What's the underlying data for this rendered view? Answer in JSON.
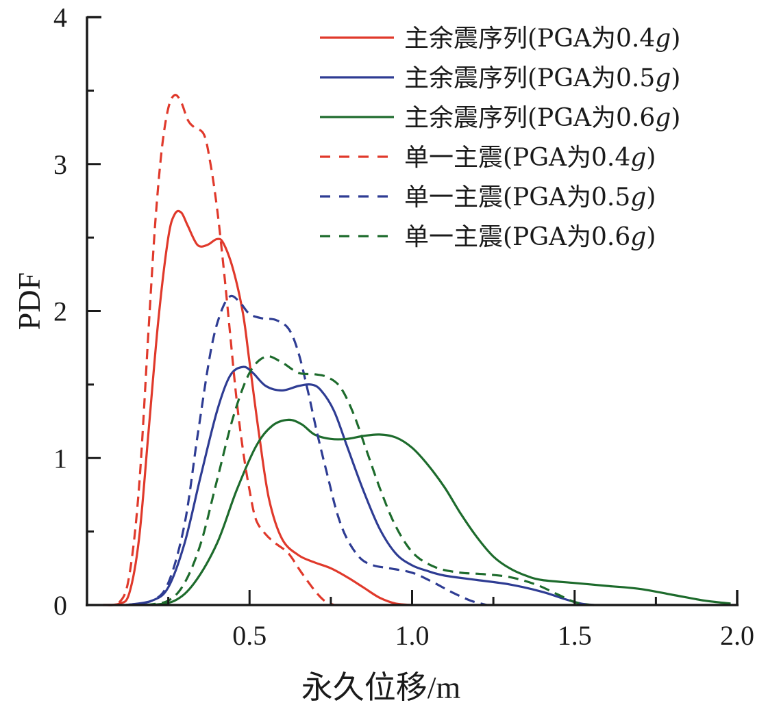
{
  "chart_data": {
    "type": "line",
    "title": "",
    "xlabel": "永久位移/m",
    "ylabel": "PDF",
    "xlim": [
      0,
      2.0
    ],
    "ylim": [
      0,
      4
    ],
    "xticks": [
      "0.5",
      "1.0",
      "1.5",
      "2.0"
    ],
    "xtick_values": [
      0.5,
      1.0,
      1.5,
      2.0
    ],
    "xminor_values": [
      0.25,
      0.75,
      1.25,
      1.75
    ],
    "yticks": [
      "0",
      "1",
      "2",
      "3",
      "4"
    ],
    "ytick_values": [
      0,
      1,
      2,
      3,
      4
    ],
    "yminor_values": [
      0.5,
      1.5,
      2.5,
      3.5
    ],
    "grid": false,
    "legend_position": "top-right",
    "series": [
      {
        "name": "主余震序列(PGA为0.4",
        "suffix": "g",
        "close": ")",
        "color": "#e0392b",
        "dash": "solid",
        "x": [
          0.05,
          0.1,
          0.13,
          0.16,
          0.19,
          0.22,
          0.25,
          0.27,
          0.29,
          0.31,
          0.34,
          0.37,
          0.4,
          0.42,
          0.45,
          0.48,
          0.5,
          0.53,
          0.56,
          0.6,
          0.65,
          0.7,
          0.75,
          0.8,
          0.85,
          0.9,
          0.95,
          1.0
        ],
        "y": [
          0,
          0.01,
          0.08,
          0.45,
          1.2,
          1.95,
          2.5,
          2.66,
          2.67,
          2.58,
          2.45,
          2.45,
          2.49,
          2.46,
          2.28,
          1.98,
          1.65,
          1.15,
          0.72,
          0.45,
          0.34,
          0.29,
          0.25,
          0.19,
          0.12,
          0.05,
          0.01,
          0
        ]
      },
      {
        "name": "主余震序列(PGA为0.5",
        "suffix": "g",
        "close": ")",
        "color": "#2e3c93",
        "dash": "solid",
        "x": [
          0.12,
          0.2,
          0.25,
          0.3,
          0.35,
          0.4,
          0.44,
          0.48,
          0.51,
          0.55,
          0.6,
          0.65,
          0.69,
          0.72,
          0.76,
          0.8,
          0.85,
          0.9,
          0.95,
          1.0,
          1.05,
          1.1,
          1.2,
          1.3,
          1.4,
          1.47,
          1.52,
          1.56
        ],
        "y": [
          0,
          0.03,
          0.12,
          0.42,
          0.88,
          1.32,
          1.56,
          1.62,
          1.58,
          1.49,
          1.46,
          1.49,
          1.5,
          1.46,
          1.32,
          1.08,
          0.78,
          0.52,
          0.35,
          0.27,
          0.23,
          0.2,
          0.17,
          0.14,
          0.09,
          0.04,
          0.01,
          0
        ]
      },
      {
        "name": "主余震序列(PGA为0.6",
        "suffix": "g",
        "close": ")",
        "color": "#1d6b2c",
        "dash": "solid",
        "x": [
          0.2,
          0.27,
          0.33,
          0.4,
          0.46,
          0.52,
          0.57,
          0.62,
          0.66,
          0.7,
          0.75,
          0.8,
          0.85,
          0.9,
          0.95,
          1.0,
          1.05,
          1.1,
          1.15,
          1.2,
          1.25,
          1.3,
          1.35,
          1.4,
          1.5,
          1.6,
          1.7,
          1.8,
          1.9,
          1.98
        ],
        "y": [
          0,
          0.03,
          0.15,
          0.42,
          0.78,
          1.08,
          1.22,
          1.26,
          1.23,
          1.16,
          1.13,
          1.13,
          1.15,
          1.16,
          1.14,
          1.07,
          0.95,
          0.8,
          0.62,
          0.46,
          0.33,
          0.25,
          0.2,
          0.17,
          0.15,
          0.13,
          0.11,
          0.07,
          0.03,
          0.01
        ]
      },
      {
        "name": "单一主震(PGA为0.4",
        "suffix": "g",
        "close": ")",
        "color": "#e0392b",
        "dash": "dashed",
        "x": [
          0.05,
          0.1,
          0.13,
          0.16,
          0.19,
          0.21,
          0.23,
          0.25,
          0.27,
          0.29,
          0.31,
          0.33,
          0.36,
          0.38,
          0.4,
          0.42,
          0.44,
          0.46,
          0.48,
          0.5,
          0.52,
          0.55,
          0.58,
          0.62,
          0.66,
          0.7,
          0.73,
          0.76
        ],
        "y": [
          0,
          0.02,
          0.2,
          0.8,
          1.9,
          2.6,
          3.1,
          3.38,
          3.47,
          3.42,
          3.3,
          3.25,
          3.2,
          3.0,
          2.7,
          2.3,
          1.85,
          1.4,
          1.05,
          0.78,
          0.58,
          0.48,
          0.42,
          0.35,
          0.22,
          0.1,
          0.03,
          0
        ]
      },
      {
        "name": "单一主震(PGA为0.5",
        "suffix": "g",
        "close": ")",
        "color": "#2e3c93",
        "dash": "dashed",
        "x": [
          0.12,
          0.2,
          0.25,
          0.3,
          0.34,
          0.38,
          0.41,
          0.44,
          0.47,
          0.5,
          0.54,
          0.58,
          0.62,
          0.65,
          0.68,
          0.71,
          0.74,
          0.77,
          0.8,
          0.84,
          0.88,
          0.93,
          1.0,
          1.06,
          1.12,
          1.18,
          1.23
        ],
        "y": [
          0,
          0.03,
          0.15,
          0.55,
          1.15,
          1.72,
          1.98,
          2.1,
          2.06,
          1.98,
          1.95,
          1.94,
          1.88,
          1.72,
          1.45,
          1.15,
          0.88,
          0.62,
          0.45,
          0.32,
          0.27,
          0.25,
          0.22,
          0.16,
          0.09,
          0.03,
          0
        ]
      },
      {
        "name": "单一主震(PGA为0.6",
        "suffix": "g",
        "close": ")",
        "color": "#1d6b2c",
        "dash": "dashed",
        "x": [
          0.18,
          0.25,
          0.3,
          0.35,
          0.4,
          0.45,
          0.5,
          0.55,
          0.6,
          0.65,
          0.7,
          0.74,
          0.78,
          0.82,
          0.86,
          0.9,
          0.94,
          0.98,
          1.02,
          1.08,
          1.15,
          1.22,
          1.3,
          1.38,
          1.45,
          1.5,
          1.55
        ],
        "y": [
          0,
          0.03,
          0.15,
          0.42,
          0.85,
          1.28,
          1.58,
          1.69,
          1.65,
          1.58,
          1.57,
          1.55,
          1.48,
          1.3,
          1.05,
          0.8,
          0.58,
          0.42,
          0.32,
          0.25,
          0.22,
          0.21,
          0.19,
          0.14,
          0.07,
          0.02,
          0
        ]
      }
    ]
  }
}
